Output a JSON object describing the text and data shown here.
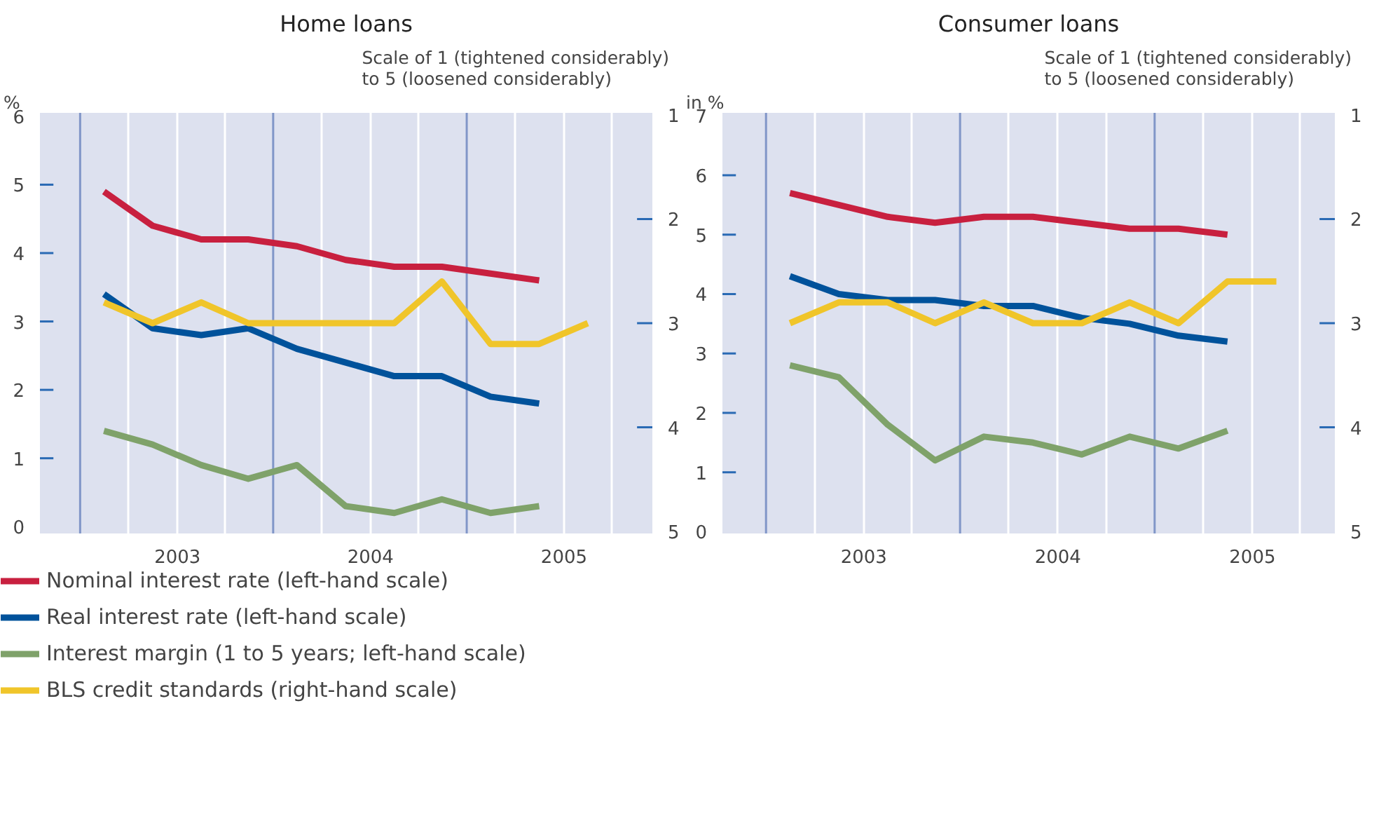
{
  "chart_data": [
    {
      "type": "line",
      "title": "Home loans",
      "ylabel": "%",
      "y2label": "Scale of 1 (tightened considerably)\nto 5 (loosened considerably)",
      "x": [
        "2002-08-15",
        "2002-11-15",
        "2003-02-15",
        "2003-05-15",
        "2003-08-15",
        "2003-11-15",
        "2004-02-15",
        "2004-05-15",
        "2004-08-15",
        "2004-11-15",
        "2005-02-15"
      ],
      "xlim": [
        "2002-04-16",
        "2005-06-17"
      ],
      "xticks": [
        {
          "value": "2002-10",
          "label": null
        },
        {
          "value": "2003",
          "label": "2003"
        },
        {
          "value": "2003-04",
          "label": null
        },
        {
          "value": "2003-10",
          "label": null
        },
        {
          "value": "2004",
          "label": "2004"
        },
        {
          "value": "2004-04",
          "label": null
        },
        {
          "value": "2004-10",
          "label": null
        },
        {
          "value": "2005",
          "label": "2005"
        },
        {
          "value": "2005-04",
          "label": null
        }
      ],
      "ylim": [
        -0.1,
        6.05
      ],
      "yticks": [
        0,
        1,
        2,
        3,
        4,
        5,
        6
      ],
      "y2lim": [
        5.02,
        0.98
      ],
      "y2ticks": [
        1,
        2,
        3,
        4,
        5
      ],
      "grid": "x",
      "legend": "bottom",
      "line_style": "solid",
      "ref_lines": [
        {
          "axis": "x",
          "value": "2002-07",
          "color": "#8196c8"
        },
        {
          "axis": "x",
          "value": "2003-07",
          "color": "#8196c8"
        },
        {
          "axis": "x",
          "value": "2004-07",
          "color": "#8196c8"
        }
      ],
      "series": [
        {
          "name": "Nominal interest rate (left-hand scale)",
          "color": "#c8203f",
          "values": [
            4.9,
            4.4,
            4.2,
            4.2,
            4.1,
            3.9,
            3.8,
            3.8,
            3.7,
            3.6,
            null
          ]
        },
        {
          "name": "Real interest rate (left-hand scale)",
          "color": "#00529b",
          "values": [
            3.4,
            2.9,
            2.8,
            2.9,
            2.6,
            2.4,
            2.2,
            2.2,
            1.9,
            1.8,
            null
          ]
        },
        {
          "name": "Interest margin (1 to 5 years; left-hand scale)",
          "color": "#7fa26a",
          "values": [
            1.4,
            1.2,
            0.9,
            0.7,
            0.9,
            0.3,
            0.2,
            0.4,
            0.2,
            0.3,
            null
          ]
        },
        {
          "name": "BLS credit standards (right-hand scale)",
          "color": "#f0c52a",
          "axis": "y2",
          "values": [
            2.8,
            3.0,
            2.8,
            3.0,
            3.0,
            3.0,
            3.0,
            2.6,
            3.2,
            3.2,
            3.0
          ]
        }
      ]
    },
    {
      "type": "line",
      "title": "Consumer loans",
      "ylabel": "in %",
      "y2label": "Scale of 1 (tightened considerably)\nto 5 (loosened considerably)",
      "x": [
        "2002-08-15",
        "2002-11-15",
        "2003-02-15",
        "2003-05-15",
        "2003-08-15",
        "2003-11-15",
        "2004-02-15",
        "2004-05-15",
        "2004-08-15",
        "2004-11-15",
        "2005-02-15"
      ],
      "xlim": [
        "2002-04-10",
        "2005-06-05"
      ],
      "xticks": [
        {
          "value": "2002-10",
          "label": null
        },
        {
          "value": "2003",
          "label": "2003"
        },
        {
          "value": "2003-04",
          "label": null
        },
        {
          "value": "2003-10",
          "label": null
        },
        {
          "value": "2004",
          "label": "2004"
        },
        {
          "value": "2004-04",
          "label": null
        },
        {
          "value": "2004-10",
          "label": null
        },
        {
          "value": "2005",
          "label": "2005"
        },
        {
          "value": "2005-04",
          "label": null
        }
      ],
      "ylim": [
        -0.03,
        7.05
      ],
      "yticks": [
        0,
        1,
        2,
        3,
        4,
        5,
        6,
        7
      ],
      "y2lim": [
        5.02,
        0.98
      ],
      "y2ticks": [
        1,
        2,
        3,
        4,
        5
      ],
      "grid": "x",
      "line_style": "solid",
      "ref_lines": [
        {
          "axis": "x",
          "value": "2002-07",
          "color": "#8196c8"
        },
        {
          "axis": "x",
          "value": "2003-07",
          "color": "#8196c8"
        },
        {
          "axis": "x",
          "value": "2004-07",
          "color": "#8196c8"
        }
      ],
      "series": [
        {
          "color": "#c8203f",
          "values": [
            5.7,
            5.5,
            5.3,
            5.2,
            5.3,
            5.3,
            5.2,
            5.1,
            5.1,
            5.0,
            null
          ]
        },
        {
          "color": "#00529b",
          "values": [
            4.3,
            4.0,
            3.9,
            3.9,
            3.8,
            3.8,
            3.6,
            3.5,
            3.3,
            3.2,
            null
          ]
        },
        {
          "color": "#7fa26a",
          "values": [
            2.8,
            2.6,
            1.8,
            1.2,
            1.6,
            1.5,
            1.3,
            1.6,
            1.4,
            1.7,
            null
          ]
        },
        {
          "color": "#f0c52a",
          "axis": "y2",
          "values": [
            3.0,
            2.8,
            2.8,
            3.0,
            2.8,
            3.0,
            3.0,
            2.8,
            3.0,
            2.6,
            2.6
          ]
        }
      ]
    }
  ]
}
